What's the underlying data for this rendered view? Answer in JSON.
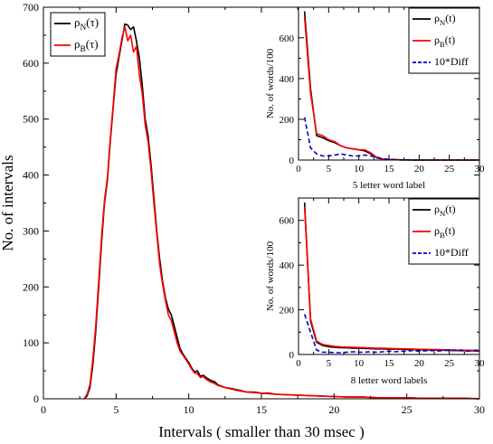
{
  "chart_data": [
    {
      "type": "line",
      "xlabel": "Intervals ( smaller than 30 msec )",
      "ylabel": "No. of intervals",
      "xlim": [
        0,
        30
      ],
      "ylim": [
        0,
        700
      ],
      "xticks": [
        "0",
        "5",
        "10",
        "15",
        "20",
        "25",
        "30"
      ],
      "yticks": [
        "0",
        "100",
        "200",
        "300",
        "400",
        "500",
        "600",
        "700"
      ],
      "legend_position": "top-left",
      "grid": false,
      "series": [
        {
          "name": "ρ_N(τ)",
          "color": "#000000",
          "x": [
            2.8,
            3.0,
            3.2,
            3.4,
            3.6,
            3.8,
            4.0,
            4.2,
            4.4,
            4.6,
            4.8,
            5.0,
            5.2,
            5.4,
            5.6,
            5.8,
            6.0,
            6.2,
            6.4,
            6.6,
            6.8,
            7.0,
            7.2,
            7.4,
            7.6,
            7.8,
            8.0,
            8.2,
            8.4,
            8.6,
            8.8,
            9.0,
            9.2,
            9.4,
            9.6,
            9.8,
            10.0,
            10.2,
            10.4,
            10.6,
            10.8,
            11.0,
            11.2,
            11.5,
            11.8,
            12.0,
            12.5,
            13.0,
            13.5,
            14.0,
            14.5,
            15.0,
            15.5,
            16.0,
            17.0,
            18.0,
            19.0,
            20.0,
            21.0,
            22.0,
            23.0,
            24.0,
            25.0,
            26.0,
            27.0,
            28.0,
            29.0,
            30.0
          ],
          "y": [
            0,
            5,
            20,
            60,
            120,
            200,
            280,
            350,
            390,
            460,
            520,
            580,
            610,
            640,
            670,
            668,
            660,
            665,
            640,
            610,
            560,
            500,
            470,
            420,
            360,
            300,
            250,
            210,
            180,
            160,
            150,
            130,
            110,
            90,
            80,
            72,
            65,
            55,
            48,
            50,
            40,
            42,
            38,
            33,
            30,
            25,
            20,
            18,
            15,
            12,
            12,
            10,
            10,
            8,
            7,
            6,
            5,
            4,
            3,
            3,
            2,
            2,
            2,
            1,
            1,
            1,
            1,
            0
          ]
        },
        {
          "name": "ρ_B(τ)",
          "color": "#ff0000",
          "x": [
            2.8,
            3.0,
            3.2,
            3.4,
            3.6,
            3.8,
            4.0,
            4.2,
            4.4,
            4.6,
            4.8,
            5.0,
            5.2,
            5.4,
            5.6,
            5.8,
            6.0,
            6.2,
            6.4,
            6.6,
            6.8,
            7.0,
            7.2,
            7.4,
            7.6,
            7.8,
            8.0,
            8.2,
            8.4,
            8.6,
            8.8,
            9.0,
            9.2,
            9.4,
            9.6,
            9.8,
            10.0,
            10.2,
            10.4,
            10.6,
            10.8,
            11.0,
            11.2,
            11.5,
            11.8,
            12.0,
            12.5,
            13.0,
            13.5,
            14.0,
            14.5,
            15.0,
            15.5,
            16.0,
            17.0,
            18.0,
            19.0,
            20.0,
            21.0,
            22.0,
            23.0,
            24.0,
            25.0,
            26.0,
            27.0,
            28.0,
            29.0,
            30.0
          ],
          "y": [
            0,
            8,
            25,
            70,
            130,
            210,
            290,
            355,
            395,
            465,
            525,
            590,
            615,
            645,
            665,
            640,
            650,
            620,
            630,
            580,
            545,
            490,
            460,
            410,
            350,
            295,
            240,
            205,
            175,
            150,
            140,
            120,
            100,
            85,
            78,
            70,
            62,
            53,
            46,
            45,
            38,
            40,
            35,
            30,
            27,
            24,
            20,
            17,
            14,
            12,
            11,
            10,
            9,
            8,
            7,
            6,
            5,
            4,
            3,
            3,
            2,
            2,
            2,
            1,
            1,
            1,
            1,
            0
          ]
        }
      ]
    },
    {
      "type": "line",
      "xlabel": "5 letter word label",
      "ylabel": "No. of words/100",
      "xlim": [
        0,
        30
      ],
      "ylim": [
        0,
        750
      ],
      "xticks": [
        "0",
        "5",
        "10",
        "15",
        "20",
        "25",
        "30"
      ],
      "yticks": [
        "0",
        "200",
        "400",
        "600"
      ],
      "legend_position": "top-right",
      "series": [
        {
          "name": "ρ_N(t)",
          "color": "#000000",
          "x": [
            1,
            2,
            3,
            4,
            5,
            6,
            7,
            8,
            9,
            10,
            11,
            12,
            13,
            14,
            15,
            16,
            17,
            18,
            19,
            20,
            21,
            22,
            23,
            24,
            25,
            26,
            27,
            28,
            29,
            30
          ],
          "y": [
            730,
            350,
            120,
            110,
            95,
            85,
            70,
            60,
            55,
            50,
            45,
            30,
            10,
            5,
            3,
            2,
            1,
            1,
            0,
            0,
            0,
            0,
            0,
            0,
            0,
            0,
            0,
            0,
            0,
            0
          ]
        },
        {
          "name": "ρ_B(t)",
          "color": "#ff0000",
          "x": [
            1,
            2,
            3,
            4,
            5,
            6,
            7,
            8,
            9,
            10,
            11,
            12,
            13,
            14,
            15,
            16,
            17,
            18,
            19,
            20,
            21,
            22,
            23,
            24,
            25,
            26,
            27,
            28,
            29,
            30
          ],
          "y": [
            700,
            330,
            130,
            120,
            100,
            90,
            70,
            60,
            55,
            50,
            50,
            35,
            12,
            5,
            3,
            2,
            1,
            1,
            0,
            0,
            0,
            0,
            0,
            0,
            0,
            0,
            0,
            0,
            0,
            0
          ]
        },
        {
          "name": "10*Diff",
          "color": "#0000cc",
          "x": [
            1,
            2,
            3,
            4,
            5,
            6,
            7,
            8,
            9,
            10,
            11,
            12,
            13,
            14,
            15,
            16,
            17,
            18,
            19,
            20,
            21,
            22,
            23,
            24,
            25,
            26,
            27,
            28,
            29,
            30
          ],
          "y": [
            210,
            60,
            30,
            20,
            20,
            25,
            30,
            25,
            20,
            20,
            25,
            20,
            15,
            5,
            3,
            2,
            1,
            1,
            0,
            0,
            0,
            0,
            0,
            0,
            0,
            0,
            0,
            0,
            0,
            0
          ]
        }
      ]
    },
    {
      "type": "line",
      "xlabel": "8 letter word labels",
      "ylabel": "No. of words/100",
      "xlim": [
        0,
        30
      ],
      "ylim": [
        0,
        700
      ],
      "xticks": [
        "0",
        "5",
        "10",
        "15",
        "20",
        "25",
        "30"
      ],
      "yticks": [
        "0",
        "200",
        "400",
        "600"
      ],
      "legend_position": "top-right",
      "series": [
        {
          "name": "ρ_N(t)",
          "color": "#000000",
          "x": [
            1,
            2,
            3,
            4,
            5,
            6,
            7,
            8,
            9,
            10,
            11,
            12,
            13,
            14,
            15,
            16,
            17,
            18,
            19,
            20,
            21,
            22,
            23,
            24,
            25,
            26,
            27,
            28,
            29,
            30
          ],
          "y": [
            680,
            150,
            55,
            40,
            35,
            32,
            30,
            30,
            28,
            28,
            27,
            26,
            25,
            25,
            24,
            24,
            23,
            22,
            22,
            21,
            21,
            20,
            20,
            19,
            18,
            18,
            17,
            17,
            16,
            15
          ]
        },
        {
          "name": "ρ_B(t)",
          "color": "#ff0000",
          "x": [
            1,
            2,
            3,
            4,
            5,
            6,
            7,
            8,
            9,
            10,
            11,
            12,
            13,
            14,
            15,
            16,
            17,
            18,
            19,
            20,
            21,
            22,
            23,
            24,
            25,
            26,
            27,
            28,
            29,
            30
          ],
          "y": [
            660,
            160,
            60,
            45,
            40,
            36,
            34,
            33,
            32,
            31,
            30,
            29,
            28,
            28,
            27,
            26,
            25,
            25,
            24,
            23,
            23,
            22,
            22,
            21,
            20,
            20,
            19,
            19,
            18,
            18
          ]
        },
        {
          "name": "10*Diff",
          "color": "#0000cc",
          "x": [
            1,
            2,
            3,
            4,
            5,
            6,
            7,
            8,
            9,
            10,
            11,
            12,
            13,
            14,
            15,
            16,
            17,
            18,
            19,
            20,
            21,
            22,
            23,
            24,
            25,
            26,
            27,
            28,
            29,
            30
          ],
          "y": [
            180,
            100,
            20,
            10,
            10,
            8,
            8,
            10,
            12,
            10,
            10,
            12,
            10,
            12,
            15,
            12,
            14,
            15,
            18,
            15,
            16,
            18,
            15,
            18,
            20,
            18,
            20,
            15,
            18,
            20
          ]
        }
      ]
    }
  ]
}
